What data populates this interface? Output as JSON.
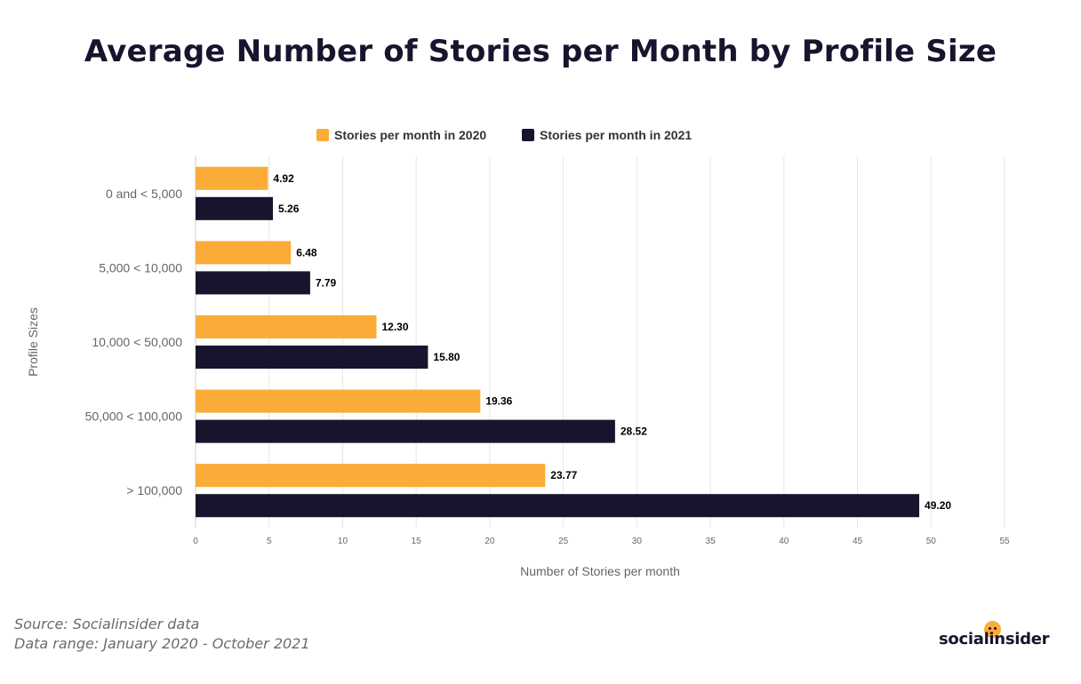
{
  "title": "Average Number of Stories per Month by Profile Size",
  "legend": {
    "series_2020": "Stories per month in 2020",
    "series_2021": "Stories per month in 2021"
  },
  "colors": {
    "series_2020": "#fbab38",
    "series_2021": "#17152e",
    "grid": "#e6e6e6",
    "axis_text": "#666666"
  },
  "footer": {
    "source": "Source: Socialinsider data",
    "range": "Data range: January 2020 - October 2021"
  },
  "logo": {
    "text": "socialinsider",
    "icon": "smiley-dot-icon"
  },
  "chart_data": {
    "type": "bar",
    "orientation": "horizontal",
    "title": "Average Number of Stories per Month by Profile Size",
    "xlabel": "Number of Stories per month",
    "ylabel": "Profile Sizes",
    "categories": [
      "0 and < 5,000",
      "5,000 < 10,000",
      "10,000 < 50,000",
      "50,000 < 100,000",
      "> 100,000"
    ],
    "series": [
      {
        "name": "Stories per month in 2020",
        "values": [
          4.92,
          6.48,
          12.3,
          19.36,
          23.77
        ],
        "labels": [
          "4.92",
          "6.48",
          "12.30",
          "19.36",
          "23.77"
        ]
      },
      {
        "name": "Stories per month in 2021",
        "values": [
          5.26,
          7.79,
          15.8,
          28.52,
          49.2
        ],
        "labels": [
          "5.26",
          "7.79",
          "15.80",
          "28.52",
          "49.20"
        ]
      }
    ],
    "xlim": [
      0,
      55
    ],
    "xticks": [
      0,
      5,
      10,
      15,
      20,
      25,
      30,
      35,
      40,
      45,
      50,
      55
    ],
    "grid": true,
    "legend_position": "top-center"
  }
}
